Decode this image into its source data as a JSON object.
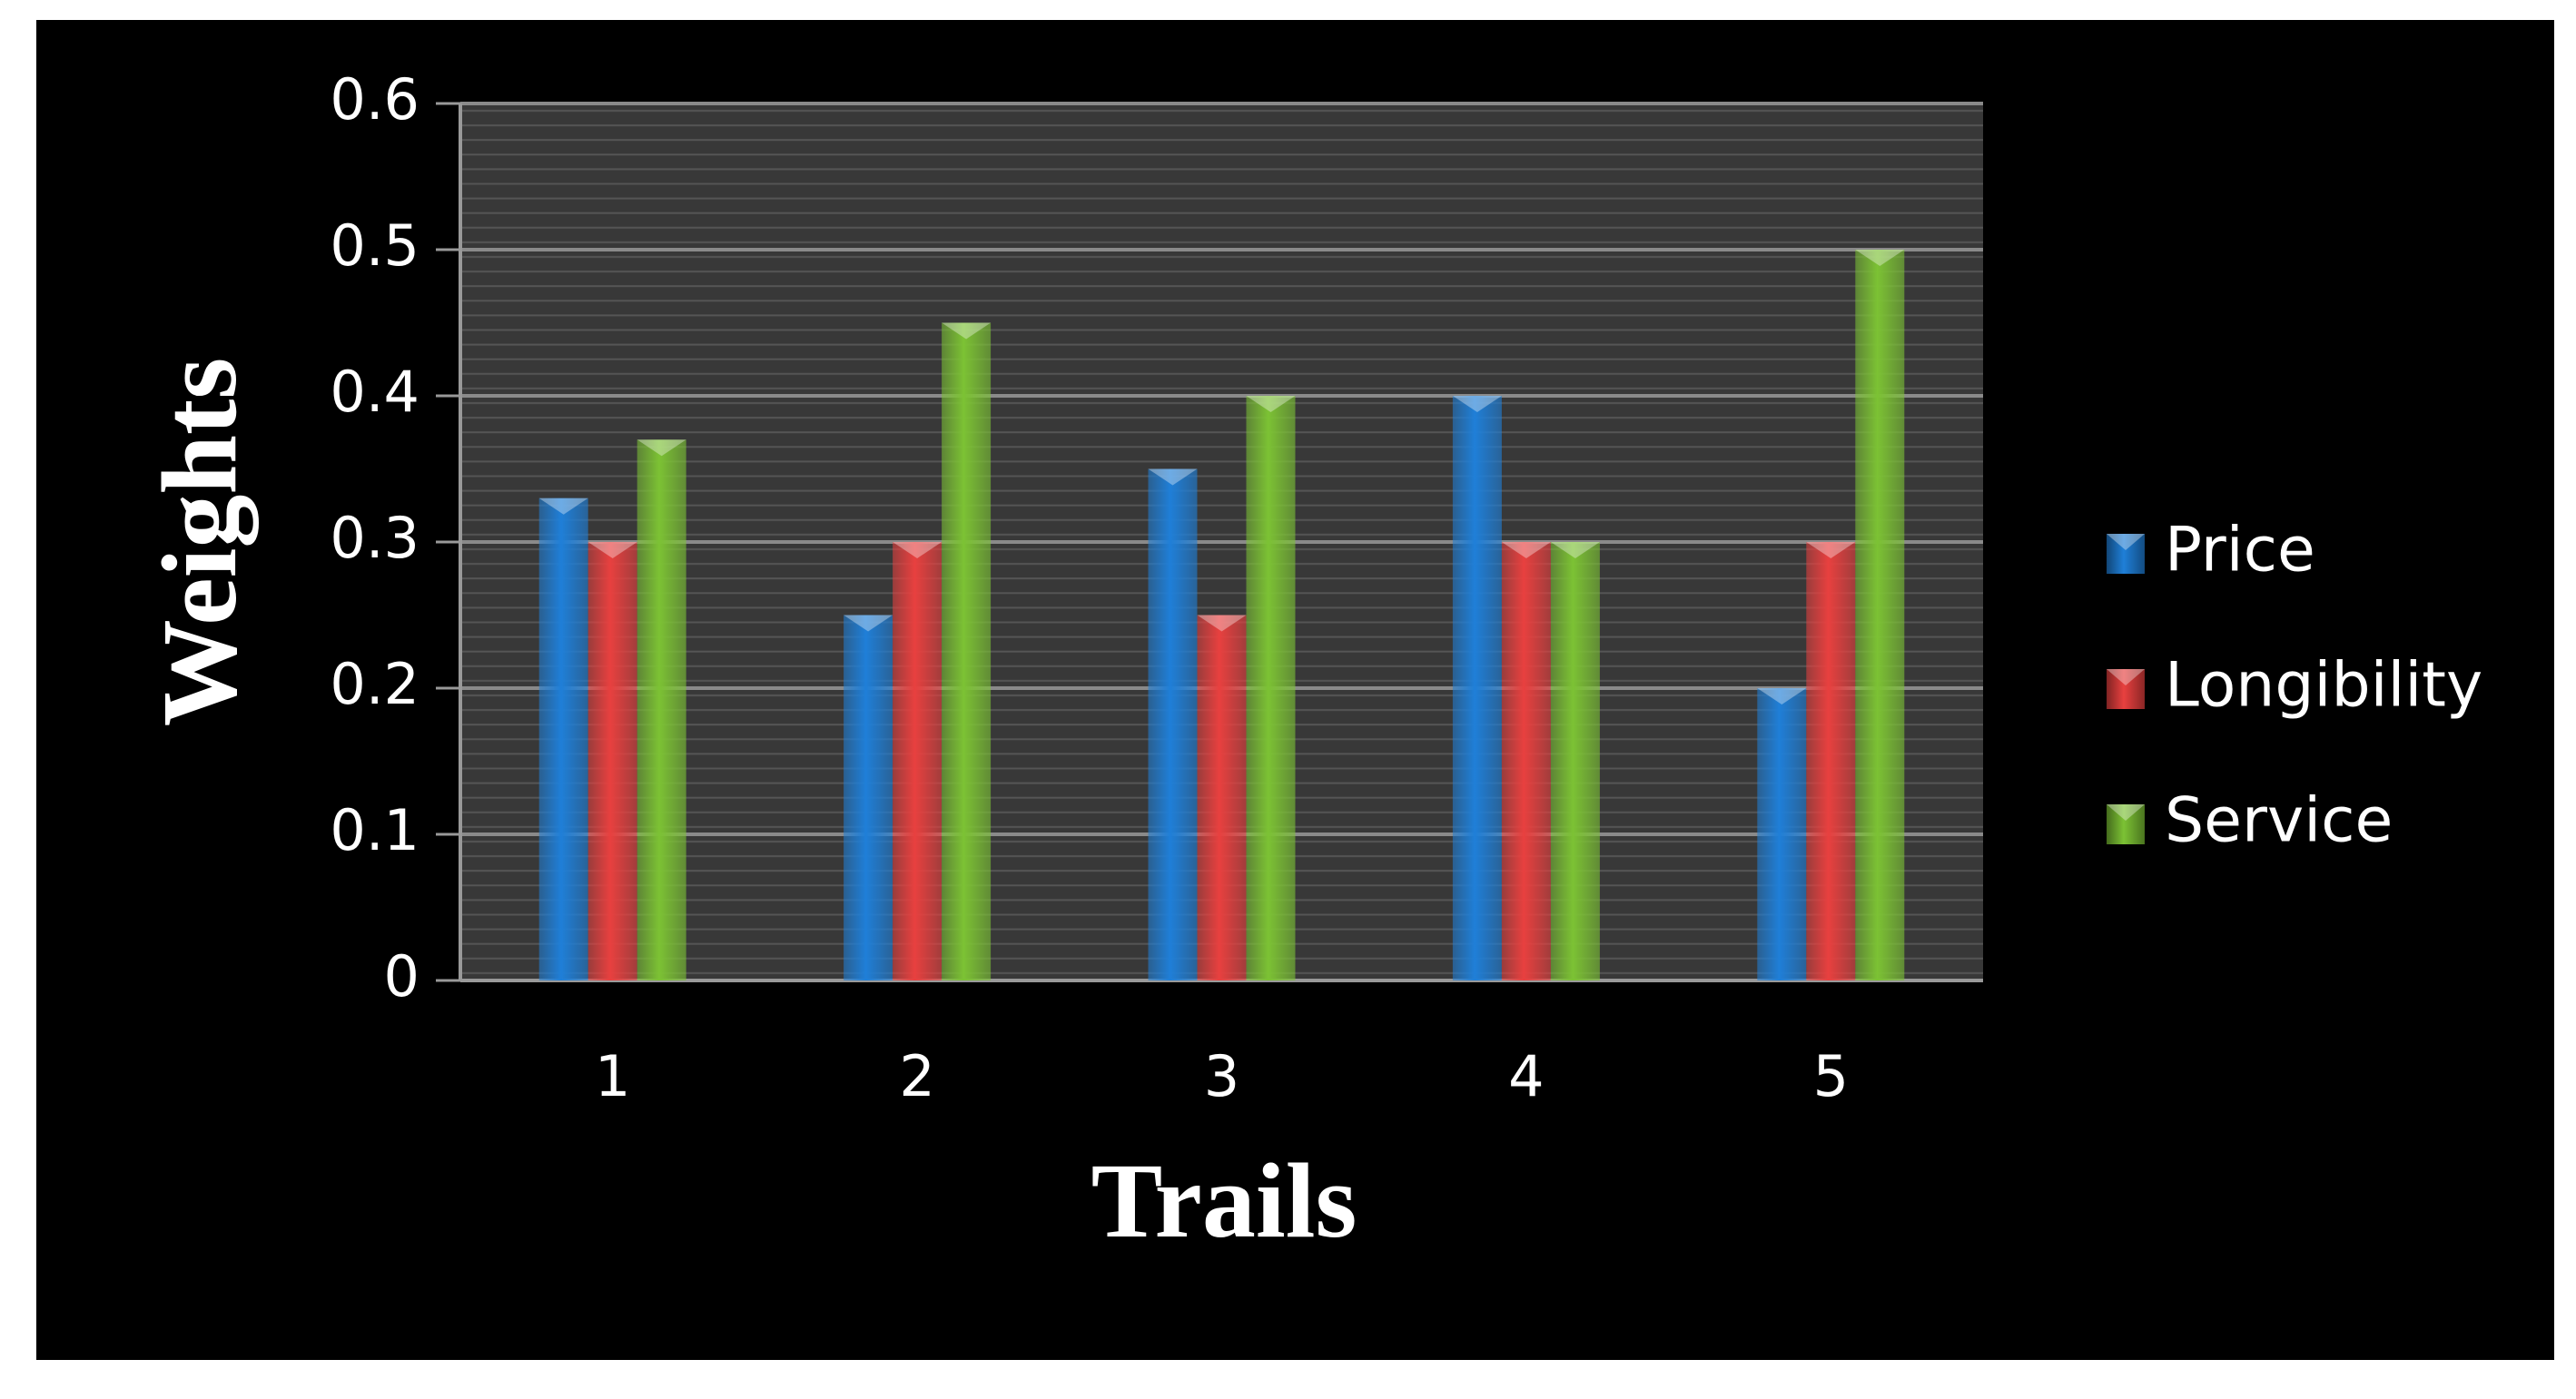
{
  "chart_data": {
    "type": "bar",
    "x_label": "Trails",
    "y_label": "Weights",
    "categories": [
      "1",
      "2",
      "3",
      "4",
      "5"
    ],
    "series": [
      {
        "name": "Price",
        "color": "#1f7fd8",
        "values": [
          0.33,
          0.25,
          0.35,
          0.4,
          0.2
        ]
      },
      {
        "name": "Longibility",
        "color": "#e8403f",
        "values": [
          0.3,
          0.3,
          0.25,
          0.3,
          0.3
        ]
      },
      {
        "name": "Service",
        "color": "#7cc234",
        "values": [
          0.37,
          0.45,
          0.4,
          0.3,
          0.5
        ]
      }
    ],
    "ylim": [
      0,
      0.6
    ],
    "yticks": [
      0,
      0.1,
      0.2,
      0.3,
      0.4,
      0.5,
      0.6
    ],
    "grid": true,
    "legend": "right"
  }
}
